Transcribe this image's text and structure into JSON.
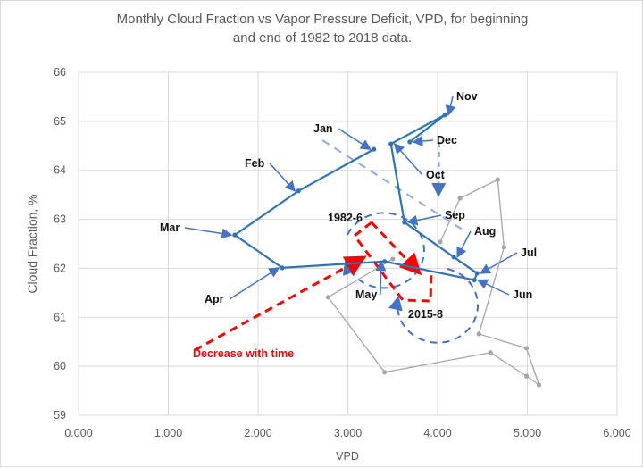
{
  "chart_data": {
    "type": "line",
    "title_line1": "Monthly Cloud Fraction vs Vapor Pressure Deficit, VPD, for beginning",
    "title_line2": "and end of 1982 to 2018 data.",
    "xlabel": "VPD",
    "ylabel": "Cloud Fraction, %",
    "xlim": [
      0,
      6
    ],
    "ylim": [
      59,
      66
    ],
    "xticks": [
      "0.000",
      "1.000",
      "2.000",
      "3.000",
      "4.000",
      "5.000",
      "6.000"
    ],
    "yticks": [
      "59",
      "60",
      "61",
      "62",
      "63",
      "64",
      "65",
      "66"
    ],
    "grid": true,
    "series": [
      {
        "name": "1982",
        "color": "#2e75b6",
        "months": [
          "Jan",
          "Feb",
          "Mar",
          "Apr",
          "May",
          "Jun",
          "Jul",
          "Aug",
          "Sep",
          "Oct",
          "Nov",
          "Dec"
        ],
        "x": [
          3.29,
          2.45,
          1.74,
          2.27,
          3.41,
          4.41,
          4.44,
          4.18,
          3.63,
          3.48,
          4.08,
          3.69
        ],
        "y": [
          64.43,
          63.58,
          62.68,
          62.01,
          62.14,
          61.76,
          61.9,
          62.23,
          62.94,
          64.54,
          65.13,
          64.58
        ]
      },
      {
        "name": "2018",
        "color": "#a6a6a6",
        "x": [
          3.5,
          2.78,
          3.41,
          4.59,
          4.99,
          5.13,
          4.99,
          4.46,
          4.74,
          4.67,
          4.25,
          4.03
        ],
        "y": [
          62.19,
          61.41,
          59.88,
          60.28,
          59.8,
          59.62,
          60.37,
          60.66,
          62.43,
          63.81,
          63.43,
          62.54
        ]
      }
    ],
    "annotations": {
      "start": "1982-6",
      "end": "2015-8",
      "trend": "Decrease with time"
    },
    "accent_red": "#ff0000"
  }
}
